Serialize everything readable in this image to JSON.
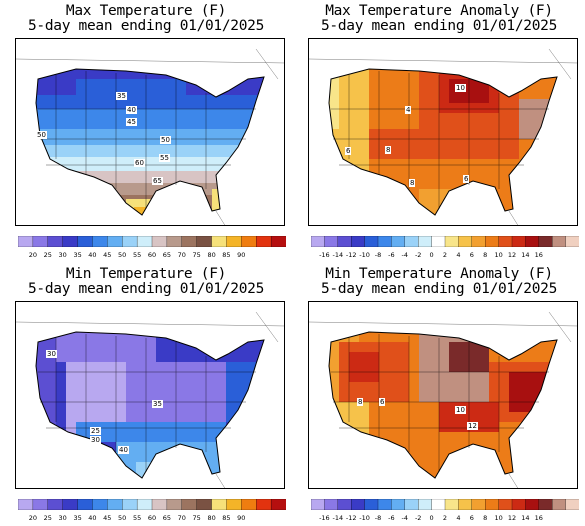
{
  "panels": [
    {
      "id": "max",
      "title_line1": "Max Temperature (F)",
      "title_line2": "5-day mean ending 01/01/2025",
      "colorbar": {
        "colors": [
          "#b8a8f0",
          "#8a78e6",
          "#5c4fd2",
          "#3a3bc6",
          "#2a5fd8",
          "#3d87ea",
          "#63aef2",
          "#9ad2f8",
          "#cfeefa",
          "#d8c4c4",
          "#b89a8c",
          "#9c7460",
          "#7a5243",
          "#f6e17a",
          "#f4b428",
          "#ef7d10",
          "#e2330f",
          "#b50f0f"
        ],
        "tick_labels": [
          "20",
          "25",
          "30",
          "35",
          "40",
          "45",
          "50",
          "55",
          "60",
          "65",
          "70",
          "75",
          "80",
          "85",
          "90"
        ]
      },
      "contour_labels": [
        "35",
        "40",
        "45",
        "50",
        "50",
        "55",
        "60",
        "65"
      ]
    },
    {
      "id": "max-anom",
      "title_line1": "Max Temperature Anomaly (F)",
      "title_line2": "5-day mean ending 01/01/2025",
      "colorbar": {
        "colors": [
          "#b8a8f0",
          "#8a78e6",
          "#5c4fd2",
          "#3a3bc6",
          "#2a5fd8",
          "#3d87ea",
          "#63aef2",
          "#9ad2f8",
          "#cfeefa",
          "#ffffff",
          "#f8e58a",
          "#f6c24a",
          "#f2a030",
          "#ec7c18",
          "#e0501a",
          "#cc2a14",
          "#a81010",
          "#7a2a2a",
          "#c09080",
          "#f0d0c0"
        ],
        "tick_labels": [
          "-16",
          "-14",
          "-12",
          "-10",
          "-8",
          "-6",
          "-4",
          "-2",
          "0",
          "2",
          "4",
          "6",
          "8",
          "10",
          "12",
          "14",
          "16"
        ]
      },
      "contour_labels": [
        "10",
        "4",
        "8",
        "6",
        "8",
        "6"
      ]
    },
    {
      "id": "min",
      "title_line1": "Min Temperature (F)",
      "title_line2": "5-day mean ending 01/01/2025",
      "colorbar": {
        "colors": [
          "#b8a8f0",
          "#8a78e6",
          "#5c4fd2",
          "#3a3bc6",
          "#2a5fd8",
          "#3d87ea",
          "#63aef2",
          "#9ad2f8",
          "#cfeefa",
          "#d8c4c4",
          "#b89a8c",
          "#9c7460",
          "#7a5243",
          "#f6e17a",
          "#f4b428",
          "#ef7d10",
          "#e2330f",
          "#b50f0f"
        ],
        "tick_labels": [
          "20",
          "25",
          "30",
          "35",
          "40",
          "45",
          "50",
          "55",
          "60",
          "65",
          "70",
          "75",
          "80",
          "85",
          "90"
        ]
      },
      "contour_labels": [
        "30",
        "35",
        "25",
        "30",
        "40"
      ]
    },
    {
      "id": "min-anom",
      "title_line1": "Min Temperature Anomaly (F)",
      "title_line2": "5-day mean ending 01/01/2025",
      "colorbar": {
        "colors": [
          "#b8a8f0",
          "#8a78e6",
          "#5c4fd2",
          "#3a3bc6",
          "#2a5fd8",
          "#3d87ea",
          "#63aef2",
          "#9ad2f8",
          "#cfeefa",
          "#ffffff",
          "#f8e58a",
          "#f6c24a",
          "#f2a030",
          "#ec7c18",
          "#e0501a",
          "#cc2a14",
          "#a81010",
          "#7a2a2a",
          "#c09080",
          "#f0d0c0"
        ],
        "tick_labels": [
          "-16",
          "-14",
          "-12",
          "-10",
          "-8",
          "-6",
          "-4",
          "-2",
          "0",
          "2",
          "4",
          "6",
          "8",
          "10",
          "12",
          "14",
          "16"
        ]
      },
      "contour_labels": [
        "8",
        "6",
        "10",
        "12"
      ]
    }
  ]
}
